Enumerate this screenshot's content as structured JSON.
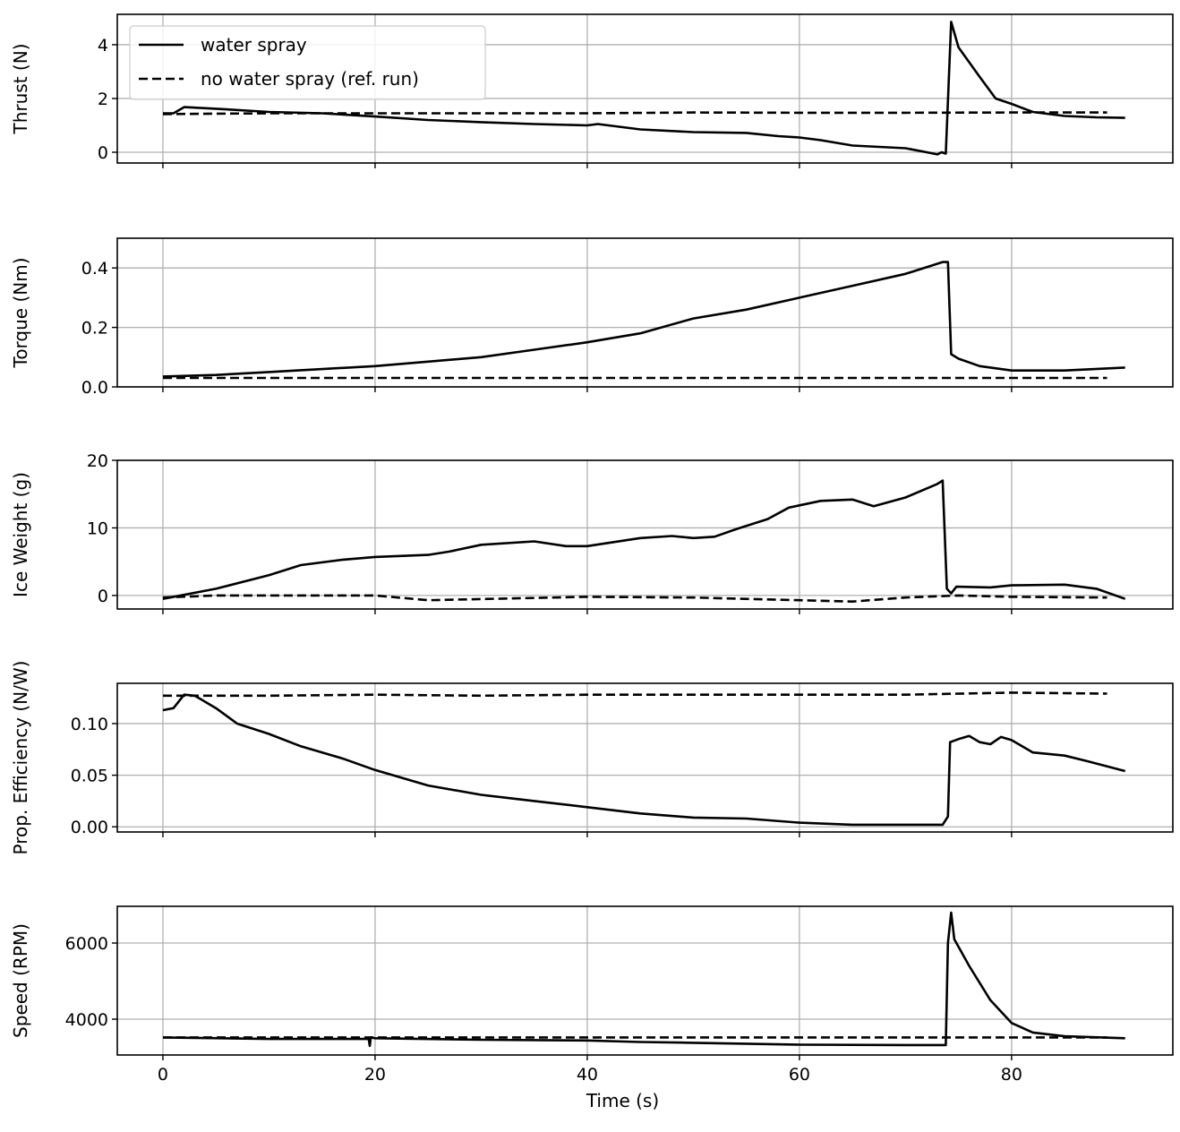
{
  "chart_data": [
    {
      "type": "line",
      "ylabel": "Thrust (N)",
      "xlim": [
        -4.3,
        95.2
      ],
      "ylim": [
        -0.4,
        5.13
      ],
      "yticks": [
        0,
        2,
        4
      ],
      "ytick_labels": [
        "0",
        "2",
        "4"
      ],
      "grid": true,
      "legend": {
        "placement": "top-left",
        "entries": [
          "water spray",
          "no water spray (ref. run)"
        ]
      },
      "series": [
        {
          "name": "water spray",
          "style": "solid",
          "x": [
            0,
            1,
            2,
            5,
            10,
            15,
            20,
            25,
            30,
            35,
            40,
            41,
            45,
            50,
            55,
            58,
            60,
            62,
            65,
            70,
            72,
            73,
            73.4,
            73.8,
            74.3,
            75,
            77,
            78.5,
            80,
            82,
            85,
            88,
            90.7
          ],
          "y": [
            1.45,
            1.45,
            1.68,
            1.62,
            1.5,
            1.45,
            1.33,
            1.2,
            1.12,
            1.05,
            1.0,
            1.05,
            0.85,
            0.75,
            0.72,
            0.6,
            0.55,
            0.45,
            0.25,
            0.15,
            0.0,
            -0.08,
            0.0,
            -0.05,
            4.85,
            3.9,
            2.8,
            2.0,
            1.8,
            1.5,
            1.35,
            1.3,
            1.28
          ]
        },
        {
          "name": "no water spray (ref. run)",
          "style": "dashed",
          "x": [
            0,
            10,
            20,
            30,
            40,
            50,
            60,
            70,
            80,
            89
          ],
          "y": [
            1.42,
            1.45,
            1.45,
            1.45,
            1.45,
            1.48,
            1.47,
            1.47,
            1.48,
            1.48
          ]
        }
      ]
    },
    {
      "type": "line",
      "ylabel": "Torque (Nm)",
      "xlim": [
        -4.3,
        95.2
      ],
      "ylim": [
        0,
        0.5
      ],
      "yticks": [
        0.0,
        0.2,
        0.4
      ],
      "ytick_labels": [
        "0.0",
        "0.2",
        "0.4"
      ],
      "grid": true,
      "series": [
        {
          "name": "water spray",
          "style": "solid",
          "x": [
            0,
            5,
            10,
            20,
            30,
            35,
            40,
            45,
            50,
            55,
            60,
            65,
            70,
            73.5,
            74,
            74.3,
            75,
            77,
            80,
            85,
            90.7
          ],
          "y": [
            0.035,
            0.04,
            0.05,
            0.07,
            0.1,
            0.125,
            0.15,
            0.18,
            0.23,
            0.26,
            0.3,
            0.34,
            0.38,
            0.42,
            0.42,
            0.11,
            0.095,
            0.07,
            0.055,
            0.055,
            0.065
          ]
        },
        {
          "name": "no water spray (ref. run)",
          "style": "dashed",
          "x": [
            0,
            20,
            40,
            60,
            80,
            89
          ],
          "y": [
            0.03,
            0.03,
            0.03,
            0.03,
            0.03,
            0.03
          ]
        }
      ]
    },
    {
      "type": "line",
      "ylabel": "Ice Weight (g)",
      "xlim": [
        -4.3,
        95.2
      ],
      "ylim": [
        -2,
        20
      ],
      "yticks": [
        0,
        10,
        20
      ],
      "ytick_labels": [
        "0",
        "10",
        "20"
      ],
      "grid": true,
      "series": [
        {
          "name": "water spray",
          "style": "solid",
          "x": [
            0,
            5,
            10,
            13,
            17,
            20,
            25,
            27,
            30,
            35,
            38,
            40,
            45,
            48,
            50,
            52,
            54,
            57,
            59,
            62,
            65,
            67,
            70,
            73,
            73.5,
            73.9,
            74.3,
            74.8,
            78,
            80,
            85,
            88,
            90.7
          ],
          "y": [
            -0.5,
            1,
            3,
            4.5,
            5.3,
            5.7,
            6,
            6.5,
            7.5,
            8,
            7.3,
            7.3,
            8.5,
            8.8,
            8.5,
            8.7,
            9.8,
            11.3,
            13,
            14,
            14.2,
            13.2,
            14.5,
            16.5,
            17,
            1,
            0.3,
            1.3,
            1.2,
            1.5,
            1.6,
            1,
            -0.5
          ]
        },
        {
          "name": "no water spray (ref. run)",
          "style": "dashed",
          "x": [
            0,
            5,
            20,
            25,
            40,
            50,
            60,
            65,
            70,
            75,
            80,
            89
          ],
          "y": [
            -0.3,
            0,
            0,
            -0.7,
            -0.2,
            -0.3,
            -0.7,
            -0.9,
            -0.3,
            0,
            -0.2,
            -0.3
          ]
        }
      ]
    },
    {
      "type": "line",
      "ylabel": "Prop. Efficiency (N/W)",
      "xlim": [
        -4.3,
        95.2
      ],
      "ylim": [
        -0.005,
        0.139
      ],
      "yticks": [
        0.0,
        0.05,
        0.1
      ],
      "ytick_labels": [
        "0.00",
        "0.05",
        "0.10"
      ],
      "grid": true,
      "series": [
        {
          "name": "water spray",
          "style": "solid",
          "x": [
            0,
            1,
            2,
            3,
            5,
            7,
            10,
            13,
            17,
            20,
            25,
            30,
            35,
            40,
            45,
            50,
            55,
            60,
            65,
            70,
            73.5,
            74,
            74.2,
            75,
            76,
            77,
            78,
            79,
            80,
            82,
            85,
            87,
            90.7
          ],
          "y": [
            0.113,
            0.115,
            0.128,
            0.127,
            0.115,
            0.1,
            0.09,
            0.078,
            0.066,
            0.055,
            0.04,
            0.031,
            0.025,
            0.019,
            0.013,
            0.009,
            0.008,
            0.004,
            0.002,
            0.002,
            0.002,
            0.01,
            0.082,
            0.085,
            0.088,
            0.082,
            0.08,
            0.087,
            0.084,
            0.072,
            0.069,
            0.064,
            0.054
          ]
        },
        {
          "name": "no water spray (ref. run)",
          "style": "dashed",
          "x": [
            0,
            10,
            20,
            30,
            40,
            50,
            60,
            70,
            80,
            89
          ],
          "y": [
            0.127,
            0.127,
            0.128,
            0.127,
            0.128,
            0.128,
            0.128,
            0.128,
            0.13,
            0.129
          ]
        }
      ]
    },
    {
      "type": "line",
      "ylabel": "Speed (RPM)",
      "xlabel": "Time (s)",
      "xlim": [
        -4.3,
        95.2
      ],
      "ylim": [
        3059,
        6965
      ],
      "yticks": [
        4000,
        6000
      ],
      "ytick_labels": [
        "4000",
        "6000"
      ],
      "xticks": [
        0,
        20,
        40,
        60,
        80
      ],
      "xtick_labels": [
        "0",
        "20",
        "40",
        "60",
        "80"
      ],
      "grid": true,
      "series": [
        {
          "name": "water spray",
          "style": "solid",
          "x": [
            0,
            10,
            19.4,
            19.5,
            19.6,
            20,
            30,
            40,
            45,
            50,
            60,
            70,
            73.8,
            74,
            74.3,
            74.6,
            76,
            78,
            80,
            82,
            85,
            90.7
          ],
          "y": [
            3520,
            3480,
            3480,
            3300,
            3520,
            3500,
            3460,
            3440,
            3400,
            3380,
            3330,
            3320,
            3320,
            6000,
            6800,
            6100,
            5400,
            4500,
            3900,
            3650,
            3550,
            3500
          ]
        },
        {
          "name": "no water spray (ref. run)",
          "style": "dashed",
          "x": [
            0,
            20,
            40,
            60,
            80,
            89
          ],
          "y": [
            3520,
            3520,
            3520,
            3520,
            3520,
            3520
          ]
        }
      ]
    }
  ]
}
